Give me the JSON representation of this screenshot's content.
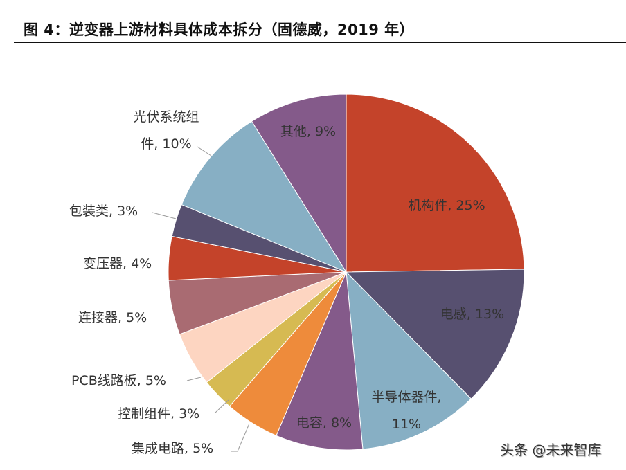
{
  "title": "图 4：逆变器上游材料具体成本拆分（固德威，2019 年）",
  "watermark": "头条 @未来智库",
  "chart_data": {
    "type": "pie",
    "start": "top",
    "direction": "clockwise",
    "slices": [
      {
        "label": "机构件",
        "value": 25,
        "text": [
          "机构件, 25%"
        ],
        "color": "#C4432A"
      },
      {
        "label": "电感",
        "value": 13,
        "text": [
          "电感, 13%"
        ],
        "color": "#575070"
      },
      {
        "label": "半导体器件",
        "value": 11,
        "text": [
          "半导体器件,",
          "11%"
        ],
        "color": "#87AFC4"
      },
      {
        "label": "电容",
        "value": 8,
        "text": [
          "电容, 8%"
        ],
        "color": "#845A8A"
      },
      {
        "label": "集成电路",
        "value": 5,
        "text": [
          "集成电路, 5%"
        ],
        "color": "#EE8B3B"
      },
      {
        "label": "控制组件",
        "value": 3,
        "text": [
          "控制组件, 3%"
        ],
        "color": "#D6BA52"
      },
      {
        "label": "PCB线路板",
        "value": 5,
        "text": [
          "PCB线路板, 5%"
        ],
        "color": "#FDD5C1"
      },
      {
        "label": "连接器",
        "value": 5,
        "text": [
          "连接器, 5%"
        ],
        "color": "#A96B72"
      },
      {
        "label": "变压器",
        "value": 4,
        "text": [
          "变压器, 4%"
        ],
        "color": "#C4432A"
      },
      {
        "label": "包装类",
        "value": 3,
        "text": [
          "包装类, 3%"
        ],
        "color": "#575070"
      },
      {
        "label": "光伏系统组件",
        "value": 10,
        "text": [
          "光伏系统组",
          "件, 10%"
        ],
        "color": "#87AFC4"
      },
      {
        "label": "其他",
        "value": 9,
        "text": [
          "其他, 9%"
        ],
        "color": "#845A8A"
      }
    ]
  }
}
